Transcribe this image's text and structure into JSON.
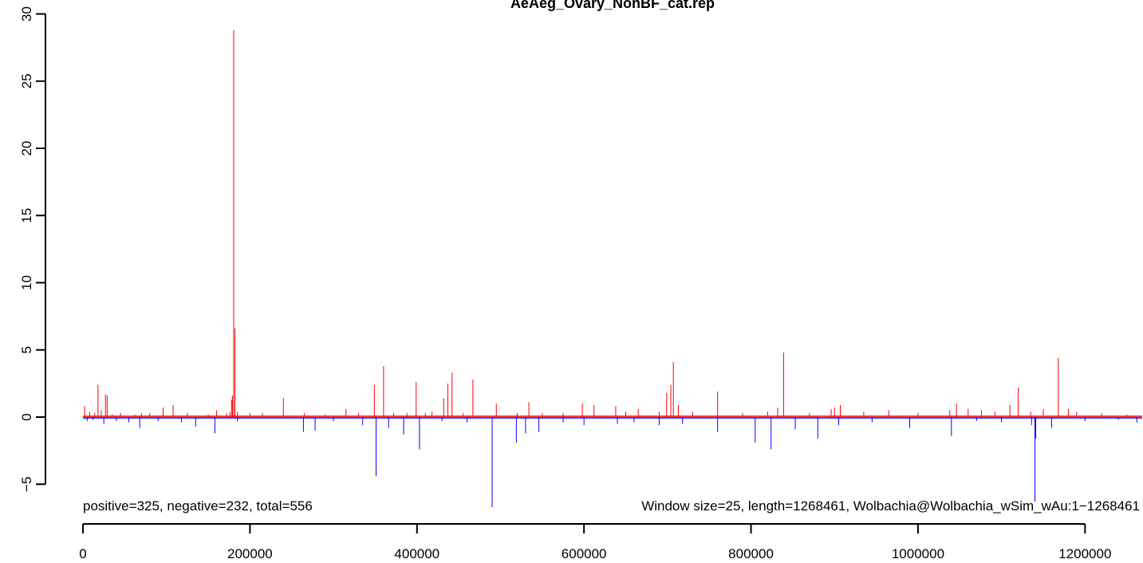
{
  "chart_data": {
    "type": "bar",
    "title": "AeAeg_Ovary_NonBF_cat.rep",
    "xlim": [
      0,
      1268461
    ],
    "ylim": [
      -6.5,
      30
    ],
    "x_ticks": [
      0,
      200000,
      400000,
      600000,
      800000,
      1000000,
      1200000
    ],
    "x_tick_labels": [
      "0",
      "200000",
      "400000",
      "600000",
      "800000",
      "1000000",
      "1200000"
    ],
    "y_ticks": [
      -5,
      0,
      5,
      10,
      15,
      20,
      25,
      30
    ],
    "y_tick_labels": [
      "−5",
      "0",
      "5",
      "10",
      "15",
      "20",
      "25",
      "30"
    ],
    "annotations": {
      "counts": "positive=325, negative=232, total=556",
      "info": "Window size=25, length=1268461, Wolbachia@Wolbachia_wSim_wAu:1−1268461"
    },
    "series": [
      {
        "name": "positive",
        "color": "#FF0000",
        "points": [
          [
            2000,
            0.8
          ],
          [
            8000,
            0.4
          ],
          [
            14000,
            0.3
          ],
          [
            18000,
            2.4
          ],
          [
            22000,
            0.5
          ],
          [
            27000,
            1.7
          ],
          [
            29000,
            1.6
          ],
          [
            35000,
            0.2
          ],
          [
            45000,
            0.3
          ],
          [
            62000,
            0.2
          ],
          [
            70000,
            0.3
          ],
          [
            80000,
            0.3
          ],
          [
            96000,
            0.7
          ],
          [
            108000,
            0.9
          ],
          [
            125000,
            0.3
          ],
          [
            150000,
            0.2
          ],
          [
            160000,
            0.5
          ],
          [
            172000,
            0.3
          ],
          [
            176000,
            0.4
          ],
          [
            178000,
            1.3
          ],
          [
            179000,
            1.6
          ],
          [
            180500,
            28.8
          ],
          [
            182000,
            6.6
          ],
          [
            185000,
            0.4
          ],
          [
            200000,
            0.3
          ],
          [
            215000,
            0.3
          ],
          [
            240000,
            1.4
          ],
          [
            265000,
            0.3
          ],
          [
            290000,
            0.2
          ],
          [
            315000,
            0.6
          ],
          [
            330000,
            0.3
          ],
          [
            349000,
            2.4
          ],
          [
            360000,
            3.8
          ],
          [
            372000,
            0.3
          ],
          [
            388000,
            0.3
          ],
          [
            399000,
            2.6
          ],
          [
            410000,
            0.3
          ],
          [
            418000,
            0.4
          ],
          [
            432000,
            1.4
          ],
          [
            437000,
            2.5
          ],
          [
            442000,
            3.3
          ],
          [
            455000,
            0.3
          ],
          [
            467000,
            2.8
          ],
          [
            495000,
            1.0
          ],
          [
            520000,
            0.3
          ],
          [
            534000,
            1.1
          ],
          [
            550000,
            0.3
          ],
          [
            575000,
            0.3
          ],
          [
            598000,
            1.0
          ],
          [
            612000,
            0.9
          ],
          [
            638000,
            0.8
          ],
          [
            650000,
            0.4
          ],
          [
            665000,
            0.6
          ],
          [
            690000,
            0.4
          ],
          [
            699000,
            1.8
          ],
          [
            704000,
            2.4
          ],
          [
            707000,
            4.1
          ],
          [
            713000,
            0.9
          ],
          [
            730000,
            0.4
          ],
          [
            760000,
            1.9
          ],
          [
            790000,
            0.3
          ],
          [
            820000,
            0.4
          ],
          [
            832000,
            0.7
          ],
          [
            839000,
            4.8
          ],
          [
            870000,
            0.3
          ],
          [
            896000,
            0.6
          ],
          [
            900000,
            0.7
          ],
          [
            907000,
            0.9
          ],
          [
            935000,
            0.4
          ],
          [
            965000,
            0.5
          ],
          [
            1000000,
            0.3
          ],
          [
            1038000,
            0.5
          ],
          [
            1046000,
            1.0
          ],
          [
            1060000,
            0.6
          ],
          [
            1076000,
            0.5
          ],
          [
            1092000,
            0.4
          ],
          [
            1110000,
            0.9
          ],
          [
            1120000,
            2.2
          ],
          [
            1135000,
            0.4
          ],
          [
            1150000,
            0.6
          ],
          [
            1168000,
            4.4
          ],
          [
            1180000,
            0.6
          ],
          [
            1190000,
            0.4
          ],
          [
            1220000,
            0.3
          ],
          [
            1250000,
            0.2
          ]
        ]
      },
      {
        "name": "negative",
        "color": "#0000FF",
        "points": [
          [
            5000,
            -0.3
          ],
          [
            12000,
            -0.2
          ],
          [
            25000,
            -0.5
          ],
          [
            40000,
            -0.3
          ],
          [
            55000,
            -0.4
          ],
          [
            68000,
            -0.8
          ],
          [
            90000,
            -0.3
          ],
          [
            118000,
            -0.4
          ],
          [
            135000,
            -0.7
          ],
          [
            158000,
            -1.2
          ],
          [
            185000,
            -0.3
          ],
          [
            264000,
            -1.1
          ],
          [
            278000,
            -1.0
          ],
          [
            300000,
            -0.3
          ],
          [
            335000,
            -0.6
          ],
          [
            351000,
            -4.4
          ],
          [
            366000,
            -0.8
          ],
          [
            384000,
            -1.3
          ],
          [
            403000,
            -2.4
          ],
          [
            430000,
            -0.3
          ],
          [
            460000,
            -0.4
          ],
          [
            490000,
            -6.7
          ],
          [
            519000,
            -1.9
          ],
          [
            530000,
            -1.2
          ],
          [
            546000,
            -1.1
          ],
          [
            575000,
            -0.4
          ],
          [
            600000,
            -0.6
          ],
          [
            640000,
            -0.5
          ],
          [
            660000,
            -0.4
          ],
          [
            690000,
            -0.6
          ],
          [
            718000,
            -0.5
          ],
          [
            760000,
            -1.1
          ],
          [
            805000,
            -1.9
          ],
          [
            824000,
            -2.4
          ],
          [
            853000,
            -0.9
          ],
          [
            880000,
            -1.6
          ],
          [
            905000,
            -0.6
          ],
          [
            945000,
            -0.4
          ],
          [
            990000,
            -0.8
          ],
          [
            1040000,
            -1.4
          ],
          [
            1070000,
            -0.3
          ],
          [
            1100000,
            -0.4
          ],
          [
            1136000,
            -0.6
          ],
          [
            1140000,
            -6.3
          ],
          [
            1141000,
            -1.6
          ],
          [
            1160000,
            -0.8
          ],
          [
            1200000,
            -0.3
          ],
          [
            1240000,
            -0.2
          ],
          [
            1262000,
            -0.4
          ]
        ]
      }
    ]
  }
}
